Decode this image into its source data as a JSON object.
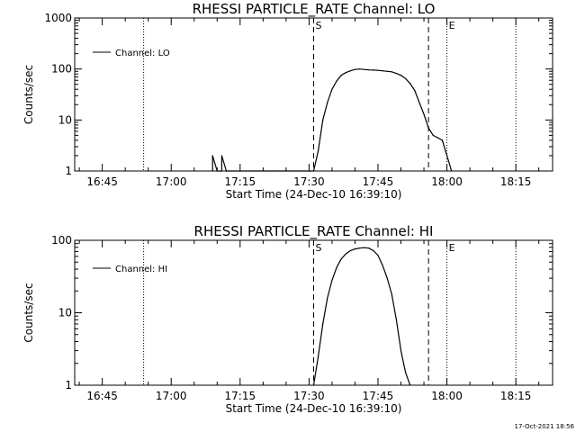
{
  "chart_data": [
    {
      "type": "line",
      "title": "RHESSI PARTICLE_RATE Channel: LO",
      "xlabel": "Start Time (24-Dec-10 16:39:10)",
      "ylabel": "Counts/sec",
      "yscale": "log",
      "xlim": [
        "16:39",
        "18:23"
      ],
      "ylim": [
        1,
        1000
      ],
      "xticks": [
        "16:45",
        "17:00",
        "17:15",
        "17:30",
        "17:45",
        "18:00",
        "18:15"
      ],
      "yticks": [
        "1",
        "10",
        "100",
        "1000"
      ],
      "legend": {
        "placement": "top-left",
        "label": "Channel: LO"
      },
      "markers": {
        "start": "S",
        "end": "E"
      },
      "lines": [
        {
          "x": "16:54",
          "style": "dotted"
        },
        {
          "x": "17:31",
          "style": "dashed"
        },
        {
          "x": "17:56",
          "style": "dashed"
        },
        {
          "x": "18:00",
          "style": "dotted"
        },
        {
          "x": "18:15",
          "style": "dotted"
        }
      ],
      "series": [
        {
          "x": [
            "17:09",
            "17:09",
            "17:10",
            "17:10",
            "17:11",
            "17:11",
            "17:12",
            "17:12",
            "17:13",
            "17:31",
            "17:32",
            "17:33",
            "17:34",
            "17:35",
            "17:36",
            "17:37",
            "17:38",
            "17:39",
            "17:40",
            "17:41",
            "17:42",
            "17:43",
            "17:44",
            "17:45",
            "17:46",
            "17:47",
            "17:48",
            "17:49",
            "17:50",
            "17:51",
            "17:52",
            "17:53",
            "17:54",
            "17:55",
            "17:56",
            "17:57",
            "17:58",
            "17:59",
            "18:00",
            "18:01"
          ],
          "y": [
            1,
            2,
            1,
            1,
            1,
            2,
            1,
            1,
            1,
            1,
            2.5,
            10,
            22,
            40,
            58,
            75,
            85,
            92,
            98,
            100,
            98,
            96,
            95,
            94,
            92,
            90,
            88,
            82,
            75,
            65,
            52,
            38,
            22,
            13,
            7,
            5,
            4.5,
            4,
            2,
            1
          ]
        }
      ]
    },
    {
      "type": "line",
      "title": "RHESSI PARTICLE_RATE Channel: HI",
      "xlabel": "Start Time (24-Dec-10 16:39:10)",
      "ylabel": "Counts/sec",
      "yscale": "log",
      "xlim": [
        "16:39",
        "18:23"
      ],
      "ylim": [
        1,
        100
      ],
      "xticks": [
        "16:45",
        "17:00",
        "17:15",
        "17:30",
        "17:45",
        "18:00",
        "18:15"
      ],
      "yticks": [
        "1",
        "10",
        "100"
      ],
      "legend": {
        "placement": "top-left",
        "label": "Channel: HI"
      },
      "markers": {
        "start": "S",
        "end": "E"
      },
      "lines": [
        {
          "x": "16:54",
          "style": "dotted"
        },
        {
          "x": "17:31",
          "style": "dashed"
        },
        {
          "x": "17:56",
          "style": "dashed"
        },
        {
          "x": "18:00",
          "style": "dotted"
        },
        {
          "x": "18:15",
          "style": "dotted"
        }
      ],
      "series": [
        {
          "x": [
            "17:31",
            "17:32",
            "17:33",
            "17:34",
            "17:35",
            "17:36",
            "17:37",
            "17:38",
            "17:39",
            "17:40",
            "17:41",
            "17:42",
            "17:43",
            "17:44",
            "17:45",
            "17:46",
            "17:47",
            "17:48",
            "17:49",
            "17:50",
            "17:51",
            "17:52"
          ],
          "y": [
            1,
            2.5,
            7,
            16,
            28,
            42,
            55,
            65,
            72,
            76,
            78,
            79,
            78,
            72,
            62,
            45,
            30,
            18,
            8,
            3,
            1.5,
            1
          ]
        }
      ]
    }
  ],
  "footer": {
    "timestamp": "17-Oct-2021 18:56"
  }
}
